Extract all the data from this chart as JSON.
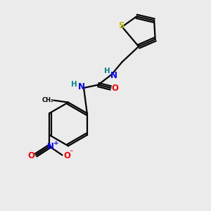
{
  "background_color": "#ebebeb",
  "bond_color": "#000000",
  "sulfur_color": "#b8b800",
  "nitrogen_color": "#0000ff",
  "oxygen_color": "#ff0000",
  "h_color": "#008888",
  "carbon_color": "#000000",
  "figsize": [
    3.0,
    3.0
  ],
  "dpi": 100,
  "xlim": [
    0,
    10
  ],
  "ylim": [
    0,
    10
  ]
}
